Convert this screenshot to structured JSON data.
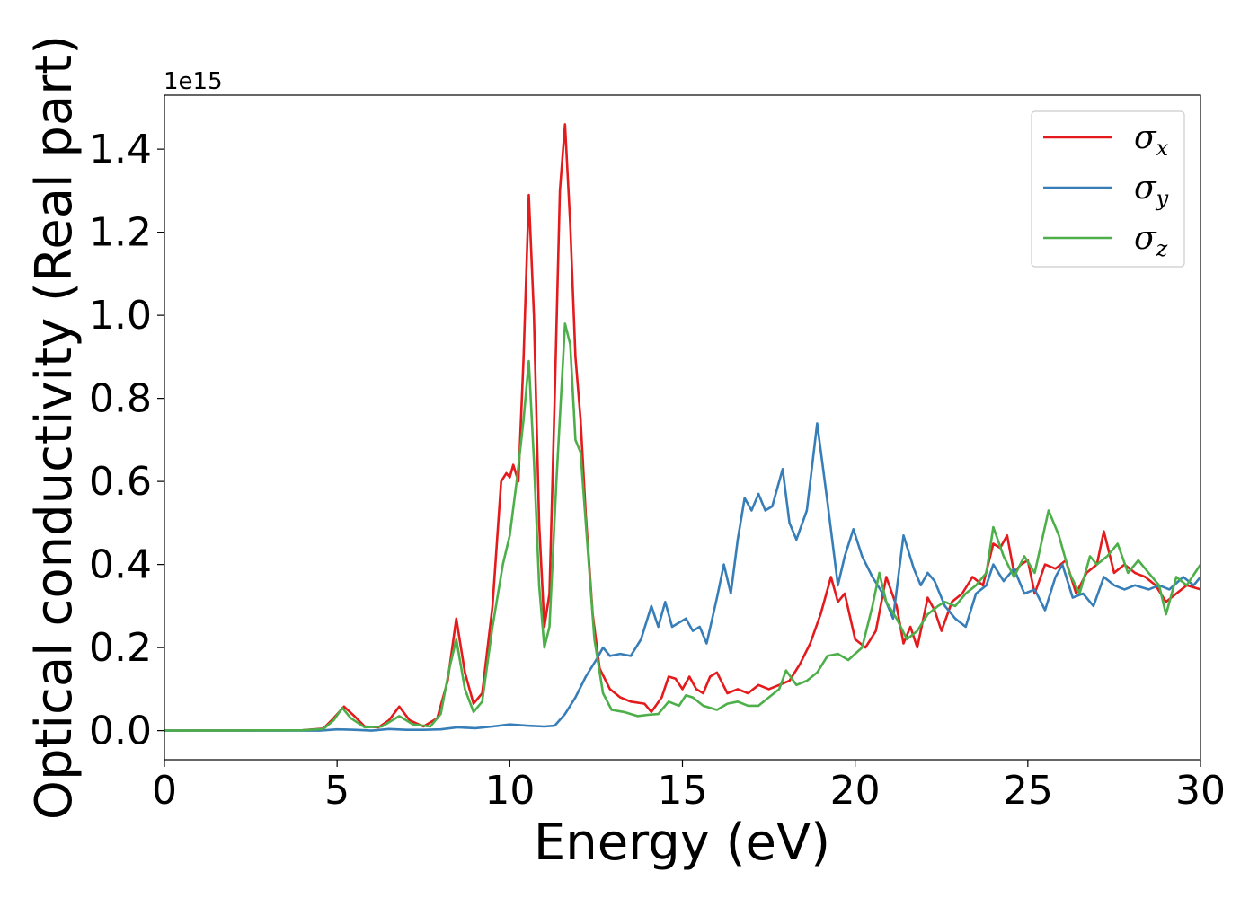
{
  "chart_data": {
    "type": "line",
    "xlabel": "Energy (eV)",
    "ylabel": "Optical conductivity (Real part)",
    "y_offset_label": "1e15",
    "xlim": [
      0,
      30
    ],
    "ylim": [
      -0.07,
      1.53
    ],
    "x_ticks": [
      0,
      5,
      10,
      15,
      20,
      25,
      30
    ],
    "x_tick_labels": [
      "0",
      "5",
      "10",
      "15",
      "20",
      "25",
      "30"
    ],
    "y_ticks": [
      0.0,
      0.2,
      0.4,
      0.6,
      0.8,
      1.0,
      1.2,
      1.4
    ],
    "y_tick_labels": [
      "0.0",
      "0.2",
      "0.4",
      "0.6",
      "0.8",
      "1.0",
      "1.2",
      "1.4"
    ],
    "grid": false,
    "legend_position": "top-right",
    "series": [
      {
        "name": "σx",
        "symbol": "σ",
        "subscript": "x",
        "color": "#e41a1c",
        "points": [
          [
            0,
            0
          ],
          [
            4.0,
            0.001
          ],
          [
            4.6,
            0.005
          ],
          [
            4.9,
            0.03
          ],
          [
            5.2,
            0.058
          ],
          [
            5.5,
            0.035
          ],
          [
            5.8,
            0.01
          ],
          [
            6.2,
            0.008
          ],
          [
            6.5,
            0.025
          ],
          [
            6.8,
            0.058
          ],
          [
            7.1,
            0.025
          ],
          [
            7.5,
            0.01
          ],
          [
            7.9,
            0.03
          ],
          [
            8.2,
            0.12
          ],
          [
            8.45,
            0.27
          ],
          [
            8.7,
            0.14
          ],
          [
            8.95,
            0.065
          ],
          [
            9.2,
            0.09
          ],
          [
            9.5,
            0.3
          ],
          [
            9.75,
            0.6
          ],
          [
            9.9,
            0.62
          ],
          [
            10.0,
            0.61
          ],
          [
            10.1,
            0.64
          ],
          [
            10.25,
            0.6
          ],
          [
            10.4,
            0.9
          ],
          [
            10.55,
            1.29
          ],
          [
            10.7,
            1.0
          ],
          [
            10.85,
            0.5
          ],
          [
            11.0,
            0.25
          ],
          [
            11.15,
            0.33
          ],
          [
            11.3,
            0.8
          ],
          [
            11.45,
            1.3
          ],
          [
            11.6,
            1.46
          ],
          [
            11.75,
            1.22
          ],
          [
            11.9,
            0.9
          ],
          [
            12.05,
            0.75
          ],
          [
            12.2,
            0.52
          ],
          [
            12.4,
            0.28
          ],
          [
            12.6,
            0.15
          ],
          [
            12.9,
            0.1
          ],
          [
            13.2,
            0.08
          ],
          [
            13.5,
            0.07
          ],
          [
            13.9,
            0.065
          ],
          [
            14.1,
            0.045
          ],
          [
            14.4,
            0.08
          ],
          [
            14.6,
            0.13
          ],
          [
            14.8,
            0.125
          ],
          [
            15.0,
            0.1
          ],
          [
            15.2,
            0.13
          ],
          [
            15.4,
            0.1
          ],
          [
            15.6,
            0.09
          ],
          [
            15.8,
            0.13
          ],
          [
            16.0,
            0.14
          ],
          [
            16.3,
            0.09
          ],
          [
            16.6,
            0.1
          ],
          [
            16.9,
            0.09
          ],
          [
            17.2,
            0.11
          ],
          [
            17.5,
            0.1
          ],
          [
            17.8,
            0.11
          ],
          [
            18.1,
            0.12
          ],
          [
            18.4,
            0.16
          ],
          [
            18.7,
            0.21
          ],
          [
            19.0,
            0.28
          ],
          [
            19.3,
            0.37
          ],
          [
            19.5,
            0.31
          ],
          [
            19.7,
            0.33
          ],
          [
            20.0,
            0.22
          ],
          [
            20.3,
            0.2
          ],
          [
            20.6,
            0.24
          ],
          [
            20.9,
            0.37
          ],
          [
            21.2,
            0.3
          ],
          [
            21.4,
            0.21
          ],
          [
            21.6,
            0.25
          ],
          [
            21.8,
            0.2
          ],
          [
            22.1,
            0.32
          ],
          [
            22.3,
            0.29
          ],
          [
            22.5,
            0.24
          ],
          [
            22.8,
            0.31
          ],
          [
            23.1,
            0.33
          ],
          [
            23.4,
            0.37
          ],
          [
            23.7,
            0.35
          ],
          [
            24.0,
            0.45
          ],
          [
            24.2,
            0.44
          ],
          [
            24.4,
            0.47
          ],
          [
            24.6,
            0.38
          ],
          [
            24.8,
            0.4
          ],
          [
            25.0,
            0.41
          ],
          [
            25.2,
            0.33
          ],
          [
            25.5,
            0.4
          ],
          [
            25.8,
            0.39
          ],
          [
            26.1,
            0.41
          ],
          [
            26.4,
            0.33
          ],
          [
            26.7,
            0.38
          ],
          [
            27.0,
            0.4
          ],
          [
            27.2,
            0.48
          ],
          [
            27.5,
            0.38
          ],
          [
            27.8,
            0.4
          ],
          [
            28.1,
            0.38
          ],
          [
            28.4,
            0.37
          ],
          [
            28.7,
            0.35
          ],
          [
            29.0,
            0.31
          ],
          [
            29.3,
            0.33
          ],
          [
            29.6,
            0.35
          ],
          [
            30.0,
            0.34
          ]
        ]
      },
      {
        "name": "σy",
        "symbol": "σ",
        "subscript": "y",
        "color": "#377eb8",
        "points": [
          [
            0,
            0
          ],
          [
            4.5,
            0.0
          ],
          [
            5.0,
            0.003
          ],
          [
            5.5,
            0.002
          ],
          [
            6.0,
            0.0
          ],
          [
            6.5,
            0.004
          ],
          [
            7.0,
            0.002
          ],
          [
            7.5,
            0.002
          ],
          [
            8.0,
            0.003
          ],
          [
            8.5,
            0.008
          ],
          [
            9.0,
            0.006
          ],
          [
            9.5,
            0.01
          ],
          [
            10.0,
            0.015
          ],
          [
            10.5,
            0.012
          ],
          [
            11.0,
            0.01
          ],
          [
            11.3,
            0.012
          ],
          [
            11.6,
            0.04
          ],
          [
            11.9,
            0.08
          ],
          [
            12.2,
            0.13
          ],
          [
            12.5,
            0.17
          ],
          [
            12.7,
            0.2
          ],
          [
            12.9,
            0.18
          ],
          [
            13.2,
            0.185
          ],
          [
            13.5,
            0.18
          ],
          [
            13.8,
            0.22
          ],
          [
            14.1,
            0.3
          ],
          [
            14.3,
            0.25
          ],
          [
            14.5,
            0.31
          ],
          [
            14.7,
            0.25
          ],
          [
            14.9,
            0.26
          ],
          [
            15.1,
            0.27
          ],
          [
            15.3,
            0.24
          ],
          [
            15.5,
            0.25
          ],
          [
            15.7,
            0.21
          ],
          [
            16.0,
            0.32
          ],
          [
            16.2,
            0.4
          ],
          [
            16.4,
            0.33
          ],
          [
            16.6,
            0.46
          ],
          [
            16.8,
            0.56
          ],
          [
            17.0,
            0.53
          ],
          [
            17.2,
            0.57
          ],
          [
            17.4,
            0.53
          ],
          [
            17.6,
            0.54
          ],
          [
            17.9,
            0.63
          ],
          [
            18.1,
            0.5
          ],
          [
            18.3,
            0.46
          ],
          [
            18.6,
            0.53
          ],
          [
            18.9,
            0.74
          ],
          [
            19.2,
            0.55
          ],
          [
            19.5,
            0.35
          ],
          [
            19.7,
            0.42
          ],
          [
            19.95,
            0.485
          ],
          [
            20.2,
            0.42
          ],
          [
            20.5,
            0.37
          ],
          [
            20.8,
            0.33
          ],
          [
            21.1,
            0.27
          ],
          [
            21.4,
            0.47
          ],
          [
            21.7,
            0.39
          ],
          [
            21.9,
            0.35
          ],
          [
            22.1,
            0.38
          ],
          [
            22.3,
            0.36
          ],
          [
            22.6,
            0.3
          ],
          [
            22.9,
            0.27
          ],
          [
            23.2,
            0.25
          ],
          [
            23.5,
            0.33
          ],
          [
            23.8,
            0.35
          ],
          [
            24.0,
            0.4
          ],
          [
            24.3,
            0.36
          ],
          [
            24.6,
            0.39
          ],
          [
            24.9,
            0.33
          ],
          [
            25.2,
            0.34
          ],
          [
            25.5,
            0.29
          ],
          [
            25.8,
            0.37
          ],
          [
            26.0,
            0.4
          ],
          [
            26.3,
            0.32
          ],
          [
            26.6,
            0.33
          ],
          [
            26.9,
            0.3
          ],
          [
            27.2,
            0.37
          ],
          [
            27.5,
            0.35
          ],
          [
            27.8,
            0.34
          ],
          [
            28.1,
            0.35
          ],
          [
            28.5,
            0.34
          ],
          [
            28.8,
            0.35
          ],
          [
            29.1,
            0.34
          ],
          [
            29.5,
            0.37
          ],
          [
            29.8,
            0.35
          ],
          [
            30.0,
            0.37
          ]
        ]
      },
      {
        "name": "σz",
        "symbol": "σ",
        "subscript": "z",
        "color": "#4daf4a",
        "points": [
          [
            0,
            0
          ],
          [
            4.0,
            0.001
          ],
          [
            4.6,
            0.004
          ],
          [
            4.9,
            0.025
          ],
          [
            5.15,
            0.055
          ],
          [
            5.4,
            0.03
          ],
          [
            5.8,
            0.008
          ],
          [
            6.3,
            0.01
          ],
          [
            6.8,
            0.035
          ],
          [
            7.2,
            0.015
          ],
          [
            7.7,
            0.01
          ],
          [
            8.0,
            0.04
          ],
          [
            8.25,
            0.15
          ],
          [
            8.45,
            0.22
          ],
          [
            8.7,
            0.1
          ],
          [
            8.95,
            0.045
          ],
          [
            9.2,
            0.07
          ],
          [
            9.5,
            0.25
          ],
          [
            9.8,
            0.4
          ],
          [
            10.0,
            0.47
          ],
          [
            10.2,
            0.6
          ],
          [
            10.4,
            0.75
          ],
          [
            10.55,
            0.89
          ],
          [
            10.7,
            0.65
          ],
          [
            10.85,
            0.35
          ],
          [
            11.0,
            0.2
          ],
          [
            11.15,
            0.25
          ],
          [
            11.35,
            0.6
          ],
          [
            11.6,
            0.98
          ],
          [
            11.75,
            0.93
          ],
          [
            11.9,
            0.7
          ],
          [
            12.05,
            0.67
          ],
          [
            12.2,
            0.5
          ],
          [
            12.45,
            0.22
          ],
          [
            12.7,
            0.09
          ],
          [
            12.95,
            0.05
          ],
          [
            13.3,
            0.045
          ],
          [
            13.7,
            0.035
          ],
          [
            14.0,
            0.038
          ],
          [
            14.3,
            0.04
          ],
          [
            14.6,
            0.07
          ],
          [
            14.9,
            0.06
          ],
          [
            15.1,
            0.085
          ],
          [
            15.3,
            0.08
          ],
          [
            15.6,
            0.06
          ],
          [
            16.0,
            0.05
          ],
          [
            16.3,
            0.065
          ],
          [
            16.6,
            0.07
          ],
          [
            16.9,
            0.06
          ],
          [
            17.2,
            0.06
          ],
          [
            17.5,
            0.08
          ],
          [
            17.8,
            0.1
          ],
          [
            18.0,
            0.145
          ],
          [
            18.3,
            0.11
          ],
          [
            18.6,
            0.12
          ],
          [
            18.9,
            0.14
          ],
          [
            19.2,
            0.18
          ],
          [
            19.5,
            0.185
          ],
          [
            19.8,
            0.17
          ],
          [
            20.2,
            0.2
          ],
          [
            20.5,
            0.3
          ],
          [
            20.7,
            0.38
          ],
          [
            20.9,
            0.31
          ],
          [
            21.2,
            0.27
          ],
          [
            21.5,
            0.22
          ],
          [
            21.8,
            0.24
          ],
          [
            22.1,
            0.28
          ],
          [
            22.4,
            0.3
          ],
          [
            22.6,
            0.31
          ],
          [
            22.9,
            0.3
          ],
          [
            23.2,
            0.33
          ],
          [
            23.5,
            0.35
          ],
          [
            23.8,
            0.38
          ],
          [
            24.0,
            0.49
          ],
          [
            24.3,
            0.42
          ],
          [
            24.6,
            0.37
          ],
          [
            24.9,
            0.42
          ],
          [
            25.2,
            0.38
          ],
          [
            25.6,
            0.53
          ],
          [
            25.9,
            0.47
          ],
          [
            26.2,
            0.38
          ],
          [
            26.5,
            0.33
          ],
          [
            26.8,
            0.42
          ],
          [
            27.0,
            0.4
          ],
          [
            27.3,
            0.42
          ],
          [
            27.6,
            0.45
          ],
          [
            27.9,
            0.38
          ],
          [
            28.2,
            0.41
          ],
          [
            28.5,
            0.38
          ],
          [
            28.8,
            0.35
          ],
          [
            29.0,
            0.28
          ],
          [
            29.3,
            0.37
          ],
          [
            29.6,
            0.35
          ],
          [
            30.0,
            0.4
          ]
        ]
      }
    ]
  }
}
